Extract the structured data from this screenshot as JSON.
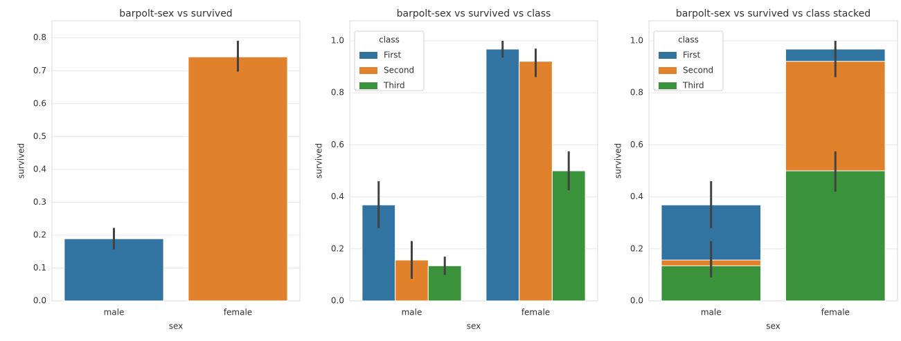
{
  "chart_data": [
    {
      "type": "bar",
      "title": "barpolt-sex vs survived",
      "xlabel": "sex",
      "ylabel": "survived",
      "categories": [
        "male",
        "female"
      ],
      "values": [
        0.189,
        0.742
      ],
      "colors": [
        "#3274a1",
        "#e1812c"
      ],
      "errors": [
        [
          0.157,
          0.222
        ],
        [
          0.697,
          0.791
        ]
      ],
      "ylim": [
        0,
        0.852
      ],
      "yticks": [
        {
          "value": 0,
          "label": "0.0"
        },
        0.1,
        0.2,
        0.3,
        0.4,
        0.5,
        0.6,
        0.7,
        0.8
      ],
      "grid": true
    },
    {
      "type": "bar",
      "barmode": "group",
      "title": "barpolt-sex vs survived vs class",
      "xlabel": "sex",
      "ylabel": "survived",
      "categories": [
        "male",
        "female"
      ],
      "legend_title": "class",
      "legend": "upper left",
      "series": [
        {
          "name": "First",
          "color": "#3274a1",
          "values": [
            0.369,
            0.968
          ],
          "errors": [
            [
              0.28,
              0.46
            ],
            [
              0.935,
              1.0
            ]
          ]
        },
        {
          "name": "Second",
          "color": "#e1812c",
          "values": [
            0.157,
            0.921
          ],
          "errors": [
            [
              0.085,
              0.23
            ],
            [
              0.86,
              0.97
            ]
          ]
        },
        {
          "name": "Third",
          "color": "#3a923a",
          "values": [
            0.135,
            0.5
          ],
          "errors": [
            [
              0.1,
              0.17
            ],
            [
              0.425,
              0.575
            ]
          ]
        }
      ],
      "ylim": [
        0,
        1.077
      ],
      "yticks": [
        {
          "value": 0,
          "label": "0.0"
        },
        0.2,
        0.4,
        0.6,
        0.8,
        {
          "value": 1,
          "label": "1.0"
        }
      ],
      "grid": true
    },
    {
      "type": "bar",
      "barmode": "overlay",
      "title": "barpolt-sex vs survived vs class stacked",
      "xlabel": "sex",
      "ylabel": "survived",
      "categories": [
        "male",
        "female"
      ],
      "legend_title": "class",
      "legend": "upper left",
      "series": [
        {
          "name": "First",
          "color": "#3274a1",
          "values": [
            0.369,
            0.968
          ],
          "errors": [
            [
              0.28,
              0.46
            ],
            [
              0.935,
              1.0
            ]
          ]
        },
        {
          "name": "Second",
          "color": "#e1812c",
          "values": [
            0.157,
            0.921
          ],
          "errors": [
            [
              0.09,
              0.23
            ],
            [
              0.86,
              0.97
            ]
          ]
        },
        {
          "name": "Third",
          "color": "#3a923a",
          "values": [
            0.135,
            0.5
          ],
          "errors": [
            [
              0.1,
              0.17
            ],
            [
              0.42,
              0.575
            ]
          ]
        }
      ],
      "ylim": [
        0,
        1.077
      ],
      "yticks": [
        {
          "value": 0,
          "label": "0.0"
        },
        0.2,
        0.4,
        0.6,
        0.8,
        {
          "value": 1,
          "label": "1.0"
        }
      ],
      "grid": true
    }
  ]
}
